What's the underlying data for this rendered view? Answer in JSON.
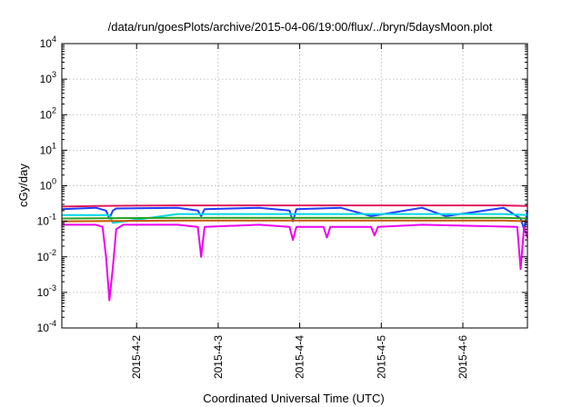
{
  "chart_data": {
    "type": "line",
    "title": "/data/run/goesPlots/archive/2015-04-06/19:00/flux/../bryn/5daysMoon.plot",
    "xlabel": "Coordinated Universal Time (UTC)",
    "ylabel": "cGy/day",
    "yscale": "log",
    "ylim": [
      0.0001,
      10000
    ],
    "xlim": [
      "2015-04-01T02:00",
      "2015-04-06T19:00"
    ],
    "xticks": [
      "2015-4-2",
      "2015-4-3",
      "2015-4-4",
      "2015-4-5",
      "2015-4-6"
    ],
    "ytick_mantissa": "10",
    "ytick_exponents": [
      "-4",
      "-3",
      "-2",
      "-1",
      "0",
      "1",
      "2",
      "3",
      "4"
    ],
    "grid": true,
    "legend": "none",
    "series": [
      {
        "color": "#1f3fff",
        "x": [
          "2015-04-01T02:00",
          "2015-04-01T12:00",
          "2015-04-01T15:00",
          "2015-04-01T16:00",
          "2015-04-01T17:00",
          "2015-04-01T18:00",
          "2015-04-02T12:00",
          "2015-04-02T18:00",
          "2015-04-02T19:00",
          "2015-04-02T20:00",
          "2015-04-03T12:00",
          "2015-04-03T21:00",
          "2015-04-03T22:00",
          "2015-04-03T23:00",
          "2015-04-04T12:00",
          "2015-04-04T21:00",
          "2015-04-05T12:00",
          "2015-04-05T19:00",
          "2015-04-06T12:00",
          "2015-04-06T17:00",
          "2015-04-06T18:00",
          "2015-04-06T19:00"
        ],
        "values": [
          0.22,
          0.24,
          0.2,
          0.12,
          0.2,
          0.23,
          0.24,
          0.2,
          0.14,
          0.22,
          0.24,
          0.2,
          0.1,
          0.22,
          0.24,
          0.14,
          0.24,
          0.14,
          0.24,
          0.12,
          0.06,
          0.2
        ]
      },
      {
        "color": "#e0195a",
        "x": [
          "2015-04-01T02:00",
          "2015-04-01T12:00",
          "2015-04-02T12:00",
          "2015-04-03T12:00",
          "2015-04-04T12:00",
          "2015-04-05T12:00",
          "2015-04-06T12:00",
          "2015-04-06T19:00"
        ],
        "values": [
          0.26,
          0.27,
          0.28,
          0.28,
          0.28,
          0.28,
          0.28,
          0.27
        ]
      },
      {
        "color": "#00d6e6",
        "x": [
          "2015-04-01T02:00",
          "2015-04-01T16:00",
          "2015-04-01T17:00",
          "2015-04-02T12:00",
          "2015-04-03T12:00",
          "2015-04-04T12:00",
          "2015-04-05T12:00",
          "2015-04-06T12:00",
          "2015-04-06T19:00"
        ],
        "values": [
          0.15,
          0.15,
          0.09,
          0.16,
          0.16,
          0.16,
          0.16,
          0.16,
          0.15
        ]
      },
      {
        "color": "#2aa020",
        "x": [
          "2015-04-01T02:00",
          "2015-04-02T12:00",
          "2015-04-03T12:00",
          "2015-04-04T12:00",
          "2015-04-05T12:00",
          "2015-04-06T12:00",
          "2015-04-06T19:00"
        ],
        "values": [
          0.12,
          0.125,
          0.125,
          0.125,
          0.125,
          0.125,
          0.12
        ]
      },
      {
        "color": "#c85a00",
        "x": [
          "2015-04-01T02:00",
          "2015-04-02T12:00",
          "2015-04-03T12:00",
          "2015-04-04T12:00",
          "2015-04-05T12:00",
          "2015-04-06T12:00",
          "2015-04-06T19:00"
        ],
        "values": [
          0.1,
          0.105,
          0.105,
          0.105,
          0.105,
          0.105,
          0.1
        ]
      },
      {
        "color": "#ee00ee",
        "x": [
          "2015-04-01T02:00",
          "2015-04-01T12:00",
          "2015-04-01T14:00",
          "2015-04-01T15:00",
          "2015-04-01T16:00",
          "2015-04-01T17:00",
          "2015-04-01T18:00",
          "2015-04-01T20:00",
          "2015-04-02T12:00",
          "2015-04-02T18:00",
          "2015-04-02T19:00",
          "2015-04-02T20:00",
          "2015-04-03T12:00",
          "2015-04-03T21:00",
          "2015-04-03T22:00",
          "2015-04-03T23:00",
          "2015-04-04T07:00",
          "2015-04-04T08:00",
          "2015-04-04T09:00",
          "2015-04-04T21:00",
          "2015-04-04T22:00",
          "2015-04-04T23:00",
          "2015-04-05T12:00",
          "2015-04-06T16:00",
          "2015-04-06T17:00",
          "2015-04-06T18:00",
          "2015-04-06T19:00"
        ],
        "values": [
          0.08,
          0.08,
          0.07,
          0.01,
          0.0006,
          0.005,
          0.06,
          0.08,
          0.08,
          0.07,
          0.01,
          0.07,
          0.08,
          0.07,
          0.03,
          0.07,
          0.07,
          0.035,
          0.07,
          0.07,
          0.04,
          0.07,
          0.08,
          0.07,
          0.0045,
          0.07,
          0.035
        ]
      }
    ]
  }
}
